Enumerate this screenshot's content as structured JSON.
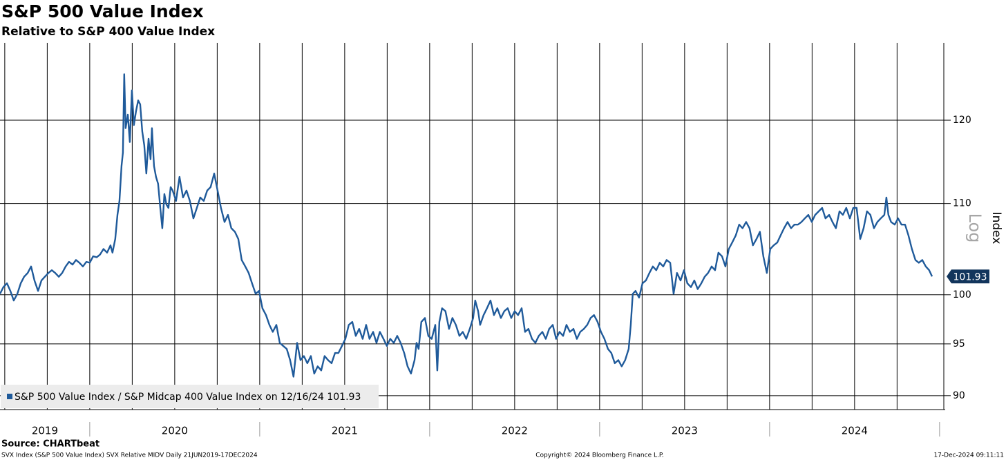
{
  "chart_data": {
    "type": "line",
    "title": "S&P 500 Value Index",
    "subtitle": "Relative to S&P 400 Value Index",
    "y_label": "Index",
    "scale_label": "Log",
    "log_scale": true,
    "grid": true,
    "legend": "lower left",
    "x": [
      2019.472,
      2019.492,
      2019.513,
      2019.533,
      2019.553,
      2019.574,
      2019.594,
      2019.614,
      2019.635,
      2019.655,
      2019.675,
      2019.696,
      2019.716,
      2019.736,
      2019.757,
      2019.777,
      2019.797,
      2019.818,
      2019.838,
      2019.858,
      2019.878,
      2019.899,
      2019.919,
      2019.939,
      2019.96,
      2019.98,
      2020.0,
      2020.02,
      2020.041,
      2020.061,
      2020.081,
      2020.102,
      2020.122,
      2020.134,
      2020.15,
      2020.163,
      2020.175,
      2020.187,
      2020.195,
      2020.203,
      2020.211,
      2020.224,
      2020.236,
      2020.248,
      2020.26,
      2020.272,
      2020.285,
      2020.297,
      2020.309,
      2020.321,
      2020.333,
      2020.346,
      2020.358,
      2020.366,
      2020.378,
      2020.39,
      2020.402,
      2020.415,
      2020.427,
      2020.439,
      2020.451,
      2020.463,
      2020.476,
      2020.488,
      2020.508,
      2020.528,
      2020.549,
      2020.569,
      2020.589,
      2020.61,
      2020.63,
      2020.65,
      2020.671,
      2020.691,
      2020.711,
      2020.732,
      2020.752,
      2020.772,
      2020.793,
      2020.813,
      2020.833,
      2020.854,
      2020.874,
      2020.894,
      2020.915,
      2020.935,
      2020.955,
      2020.976,
      2020.996,
      2021.016,
      2021.037,
      2021.057,
      2021.077,
      2021.098,
      2021.118,
      2021.138,
      2021.159,
      2021.179,
      2021.199,
      2021.22,
      2021.24,
      2021.26,
      2021.28,
      2021.301,
      2021.321,
      2021.341,
      2021.362,
      2021.382,
      2021.402,
      2021.423,
      2021.443,
      2021.463,
      2021.484,
      2021.504,
      2021.524,
      2021.545,
      2021.565,
      2021.585,
      2021.606,
      2021.626,
      2021.646,
      2021.667,
      2021.687,
      2021.707,
      2021.728,
      2021.748,
      2021.768,
      2021.789,
      2021.809,
      2021.829,
      2021.85,
      2021.87,
      2021.89,
      2021.911,
      2021.923,
      2021.935,
      2021.951,
      2021.972,
      2021.992,
      2022.012,
      2022.033,
      2022.045,
      2022.057,
      2022.073,
      2022.093,
      2022.114,
      2022.134,
      2022.154,
      2022.175,
      2022.195,
      2022.215,
      2022.236,
      2022.256,
      2022.268,
      2022.285,
      2022.297,
      2022.317,
      2022.337,
      2022.358,
      2022.378,
      2022.398,
      2022.419,
      2022.439,
      2022.459,
      2022.48,
      2022.5,
      2022.52,
      2022.541,
      2022.561,
      2022.581,
      2022.602,
      2022.622,
      2022.642,
      2022.663,
      2022.683,
      2022.703,
      2022.724,
      2022.744,
      2022.764,
      2022.785,
      2022.805,
      2022.825,
      2022.846,
      2022.866,
      2022.886,
      2022.907,
      2022.927,
      2022.947,
      2022.967,
      2022.988,
      2023.008,
      2023.028,
      2023.049,
      2023.069,
      2023.089,
      2023.11,
      2023.13,
      2023.15,
      2023.171,
      2023.183,
      2023.195,
      2023.211,
      2023.232,
      2023.252,
      2023.272,
      2023.293,
      2023.313,
      2023.333,
      2023.354,
      2023.374,
      2023.394,
      2023.415,
      2023.435,
      2023.455,
      2023.476,
      2023.496,
      2023.516,
      2023.537,
      2023.557,
      2023.577,
      2023.598,
      2023.618,
      2023.638,
      2023.659,
      2023.679,
      2023.699,
      2023.72,
      2023.74,
      2023.76,
      2023.78,
      2023.801,
      2023.821,
      2023.841,
      2023.862,
      2023.882,
      2023.902,
      2023.923,
      2023.943,
      2023.963,
      2023.984,
      2024.004,
      2024.024,
      2024.045,
      2024.065,
      2024.085,
      2024.106,
      2024.126,
      2024.146,
      2024.167,
      2024.187,
      2024.207,
      2024.228,
      2024.248,
      2024.268,
      2024.289,
      2024.309,
      2024.329,
      2024.35,
      2024.37,
      2024.39,
      2024.411,
      2024.431,
      2024.451,
      2024.472,
      2024.492,
      2024.512,
      2024.533,
      2024.553,
      2024.573,
      2024.593,
      2024.614,
      2024.634,
      2024.654,
      2024.675,
      2024.687,
      2024.699,
      2024.715,
      2024.736,
      2024.756,
      2024.776,
      2024.797,
      2024.817,
      2024.837,
      2024.858,
      2024.878,
      2024.898,
      2024.919,
      2024.939,
      2024.956
    ],
    "series": [
      {
        "name": "S&P 500 Value Index / S&P Midcap 400 Value Index on 12/16/24 101.93",
        "color": "#1f5a9a",
        "values": [
          100.1,
          100.8,
          101.2,
          100.4,
          99.4,
          100.1,
          101.2,
          101.9,
          102.3,
          103.0,
          101.5,
          100.4,
          101.5,
          101.9,
          102.3,
          102.6,
          102.3,
          101.9,
          102.3,
          103.0,
          103.5,
          103.2,
          103.7,
          103.4,
          103.0,
          103.5,
          103.4,
          104.1,
          104.0,
          104.3,
          104.9,
          104.5,
          105.3,
          104.5,
          106.0,
          108.7,
          110.3,
          114.4,
          116.0,
          125.9,
          119.0,
          120.7,
          117.3,
          123.8,
          119.4,
          121.1,
          122.5,
          122.0,
          118.6,
          116.9,
          113.5,
          117.7,
          115.2,
          119.0,
          114.4,
          113.1,
          112.3,
          109.5,
          107.2,
          111.1,
          109.9,
          109.5,
          111.9,
          111.5,
          110.3,
          113.1,
          110.7,
          111.5,
          110.3,
          108.3,
          109.5,
          110.7,
          110.3,
          111.5,
          111.9,
          113.5,
          111.5,
          109.5,
          107.9,
          108.7,
          107.2,
          106.8,
          106.0,
          103.7,
          103.0,
          102.3,
          101.2,
          100.1,
          100.4,
          98.6,
          97.9,
          96.9,
          96.2,
          96.9,
          95.1,
          94.8,
          94.5,
          93.4,
          91.8,
          95.1,
          93.4,
          93.8,
          93.1,
          93.8,
          92.1,
          92.8,
          92.4,
          93.8,
          93.4,
          93.1,
          94.1,
          94.1,
          94.8,
          95.5,
          96.9,
          97.2,
          95.8,
          96.5,
          95.5,
          96.9,
          95.5,
          96.2,
          95.1,
          96.2,
          95.5,
          94.8,
          95.5,
          95.1,
          95.8,
          95.1,
          94.1,
          92.8,
          92.1,
          93.4,
          95.1,
          94.5,
          97.2,
          97.6,
          95.8,
          95.5,
          96.9,
          92.4,
          97.2,
          98.6,
          98.3,
          96.5,
          97.6,
          96.9,
          95.8,
          96.2,
          95.5,
          96.5,
          97.6,
          99.4,
          98.3,
          96.9,
          97.9,
          98.6,
          99.4,
          97.9,
          98.6,
          97.6,
          98.3,
          98.6,
          97.6,
          98.3,
          97.9,
          98.6,
          96.2,
          96.5,
          95.5,
          95.1,
          95.8,
          96.2,
          95.5,
          96.5,
          96.9,
          95.5,
          96.2,
          95.8,
          96.9,
          96.2,
          96.5,
          95.5,
          96.2,
          96.5,
          96.9,
          97.6,
          97.9,
          97.2,
          96.2,
          95.5,
          94.5,
          94.1,
          93.1,
          93.4,
          92.8,
          93.4,
          94.5,
          96.9,
          100.1,
          100.4,
          99.7,
          101.2,
          101.5,
          102.3,
          103.0,
          102.6,
          103.4,
          103.0,
          103.7,
          103.4,
          100.1,
          102.3,
          101.5,
          102.6,
          101.2,
          100.8,
          101.5,
          100.6,
          101.2,
          101.9,
          102.3,
          103.0,
          102.6,
          104.5,
          104.1,
          103.0,
          104.9,
          105.6,
          106.4,
          107.6,
          107.2,
          107.9,
          107.2,
          105.3,
          106.0,
          106.8,
          104.1,
          102.3,
          104.9,
          105.3,
          105.6,
          106.4,
          107.2,
          107.9,
          107.2,
          107.6,
          107.6,
          107.9,
          108.3,
          108.7,
          107.9,
          108.7,
          109.1,
          109.5,
          108.3,
          108.7,
          107.9,
          107.2,
          109.1,
          108.7,
          109.5,
          108.3,
          109.5,
          109.5,
          106.0,
          107.2,
          109.1,
          108.7,
          107.2,
          107.9,
          108.3,
          108.7,
          110.7,
          108.7,
          107.9,
          107.6,
          108.3,
          107.6,
          107.6,
          106.4,
          104.9,
          103.7,
          103.4,
          103.7,
          103.0,
          102.6,
          101.93
        ]
      }
    ],
    "xlim": [
      2019.472,
      2025.025
    ],
    "xticks": [
      {
        "value": 2019,
        "label": "2019"
      },
      {
        "value": 2020,
        "label": "2020"
      },
      {
        "value": 2021,
        "label": "2021"
      },
      {
        "value": 2022,
        "label": "2022"
      },
      {
        "value": 2023,
        "label": "2023"
      },
      {
        "value": 2024,
        "label": "2024"
      },
      {
        "value": 2025,
        "label": ""
      }
    ],
    "xgrid": [
      2019.5,
      2019.75,
      2020,
      2020.25,
      2020.5,
      2020.75,
      2021,
      2021.25,
      2021.5,
      2021.75,
      2022,
      2022.25,
      2022.5,
      2022.75,
      2023,
      2023.25,
      2023.5,
      2023.75,
      2024,
      2024.25,
      2024.5,
      2024.75
    ],
    "ylim": [
      88.7,
      130.1
    ],
    "yticks": [
      90,
      95,
      100,
      110,
      120
    ]
  },
  "footer": {
    "source": "Source: CHARTbeat",
    "description": "SVX Index (S&P 500 Value Index) SVX Relative MIDV  Daily 21JUN2019-17DEC2024",
    "copyright": "Copyright© 2024 Bloomberg Finance L.P.",
    "timestamp": "17-Dec-2024 09:11:11"
  }
}
